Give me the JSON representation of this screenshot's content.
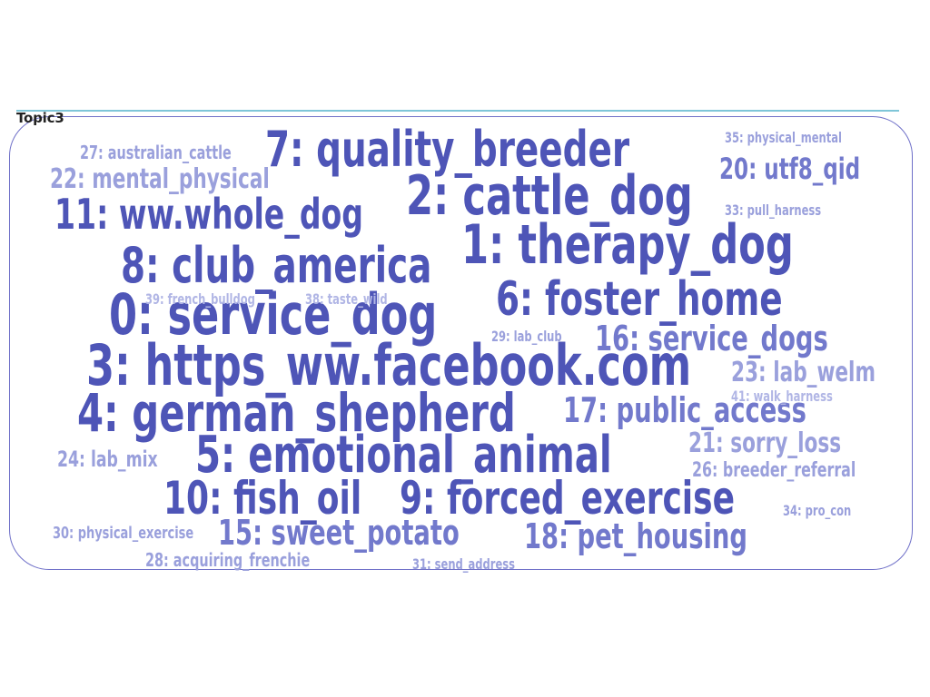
{
  "topic_title": "Topic3",
  "words": [
    {
      "key": "w0",
      "text": "0: service_dog"
    },
    {
      "key": "w1",
      "text": "1: therapy_dog"
    },
    {
      "key": "w2",
      "text": "2: cattle_dog"
    },
    {
      "key": "w3",
      "text": "3: https_ww.facebook.com"
    },
    {
      "key": "w4",
      "text": "4: german_shepherd"
    },
    {
      "key": "w5",
      "text": "5: emotional_animal"
    },
    {
      "key": "w6",
      "text": "6: foster_home"
    },
    {
      "key": "w7",
      "text": "7: quality_breeder"
    },
    {
      "key": "w8",
      "text": "8: club_america"
    },
    {
      "key": "w9",
      "text": "9: forced_exercise"
    },
    {
      "key": "w10",
      "text": "10: fish_oil"
    },
    {
      "key": "w11",
      "text": "11: ww.whole_dog"
    },
    {
      "key": "w15",
      "text": "15: sweet_potato"
    },
    {
      "key": "w16",
      "text": "16: service_dogs"
    },
    {
      "key": "w17",
      "text": "17: public_access"
    },
    {
      "key": "w18",
      "text": "18: pet_housing"
    },
    {
      "key": "w20",
      "text": "20: utf8_qid"
    },
    {
      "key": "w21",
      "text": "21: sorry_loss"
    },
    {
      "key": "w22",
      "text": "22: mental_physical"
    },
    {
      "key": "w23",
      "text": "23: lab_welm"
    },
    {
      "key": "w24",
      "text": "24: lab_mix"
    },
    {
      "key": "w26",
      "text": "26: breeder_referral"
    },
    {
      "key": "w27",
      "text": "27: australian_cattle"
    },
    {
      "key": "w28",
      "text": "28: acquiring_frenchie"
    },
    {
      "key": "w29",
      "text": "29: lab_club"
    },
    {
      "key": "w30",
      "text": "30: physical_exercise"
    },
    {
      "key": "w31",
      "text": "31: send_address"
    },
    {
      "key": "w33",
      "text": "33: pull_harness"
    },
    {
      "key": "w34",
      "text": "34: pro_con"
    },
    {
      "key": "w35",
      "text": "35: physical_mental"
    },
    {
      "key": "w38",
      "text": "38: taste_wild"
    },
    {
      "key": "w39",
      "text": "39: french_bulldog"
    },
    {
      "key": "w41",
      "text": "41: walk_harness"
    }
  ],
  "colors": {
    "primary": "#4e55b7",
    "secondary": "#7279cc",
    "tertiary": "#9aa0dc",
    "faint": "#b1b6e5",
    "frame": "#6f70c8",
    "title_line": "#7fc6d8"
  }
}
